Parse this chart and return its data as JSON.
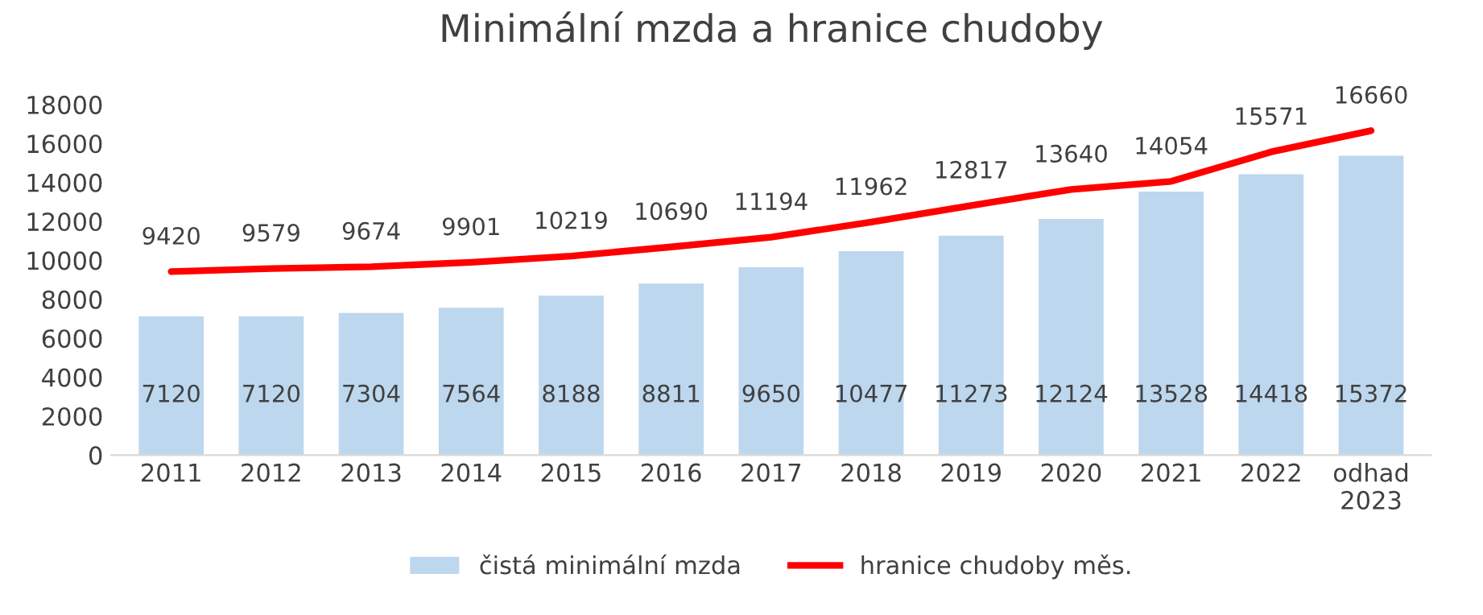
{
  "chart_data": {
    "type": "bar",
    "title": "Minimální mzda a hranice chudoby",
    "categories": [
      "2011",
      "2012",
      "2013",
      "2014",
      "2015",
      "2016",
      "2017",
      "2018",
      "2019",
      "2020",
      "2021",
      "2022",
      "odhad\n2023"
    ],
    "series": [
      {
        "name": "čistá minimální mzda",
        "color": "#bdd7ee",
        "values": [
          7120,
          7120,
          7304,
          7564,
          8188,
          8811,
          9650,
          10477,
          11273,
          12124,
          13528,
          14418,
          15372
        ]
      },
      {
        "name": "hranice chudoby měs.",
        "type": "line",
        "color": "#ff0000",
        "values": [
          9420,
          9579,
          9674,
          9901,
          10219,
          10690,
          11194,
          11962,
          12817,
          13640,
          14054,
          15571,
          16660
        ]
      }
    ],
    "ylim": [
      0,
      18000
    ],
    "yticks": [
      0,
      2000,
      4000,
      6000,
      8000,
      10000,
      12000,
      14000,
      16000,
      18000
    ],
    "data_labels": true,
    "grid": false,
    "legend": "bottom"
  }
}
